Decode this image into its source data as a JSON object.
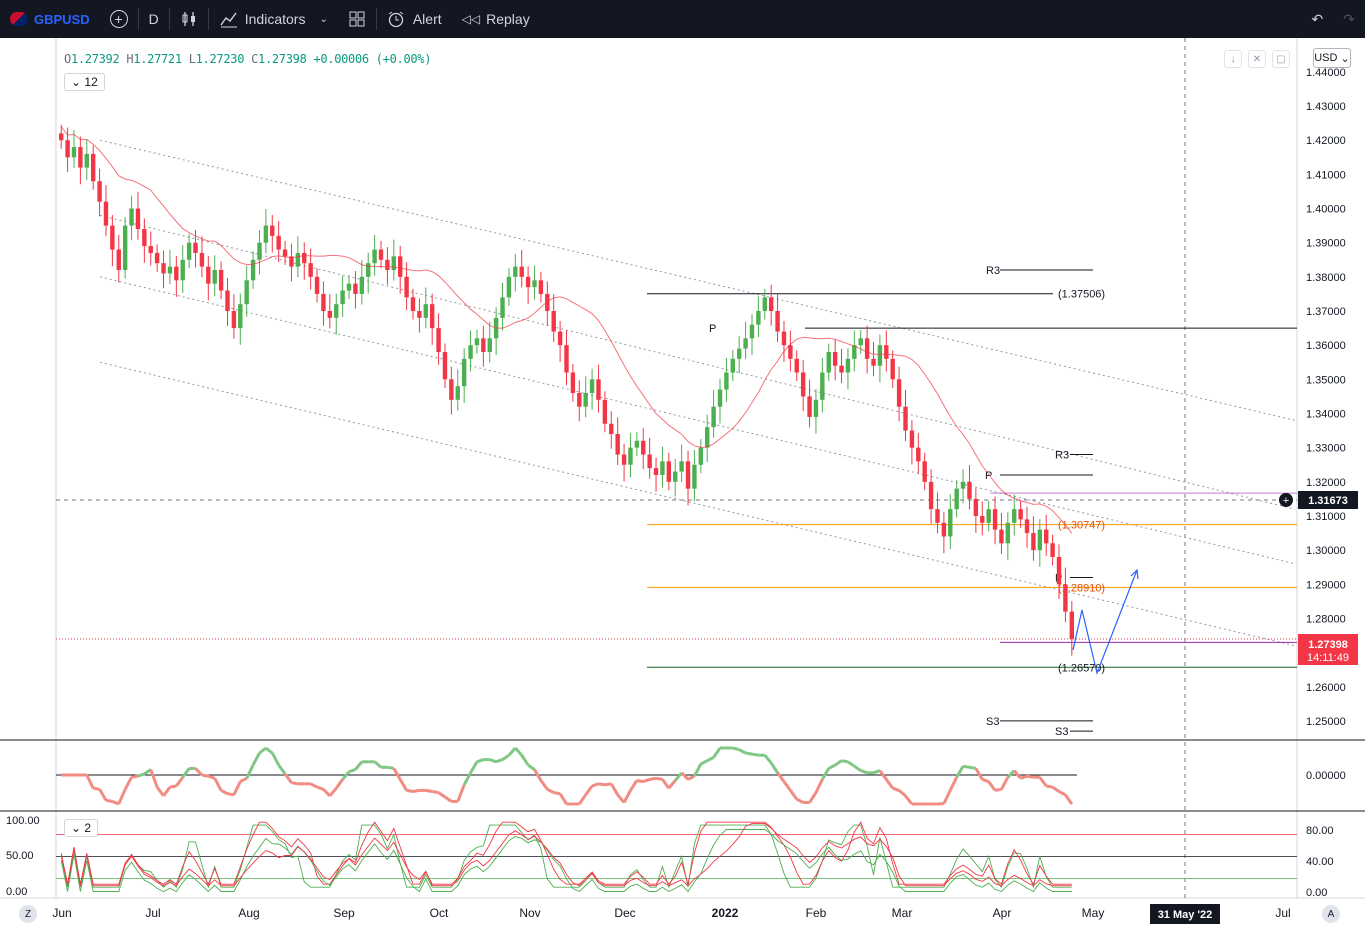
{
  "toolbar": {
    "symbol": "GBPUSD",
    "interval": "D",
    "indicators_label": "Indicators",
    "alert_label": "Alert",
    "replay_label": "Replay"
  },
  "legend": {
    "open_k": "O",
    "open": "1.27392",
    "high_k": "H",
    "high": "1.27721",
    "low_k": "L",
    "low": "1.27230",
    "close_k": "C",
    "close": "1.27398",
    "change": "+0.00006 (+0.00%)",
    "collapse_count": "12",
    "osc_count": "2"
  },
  "price_scale": {
    "currency": "USD"
  },
  "colors": {
    "up": "#4caf50",
    "down": "#f23645",
    "pivot_orange": "#ff9800",
    "purple": "#9c27b0"
  },
  "chart_data": {
    "type": "candlestick",
    "symbol": "GBPUSD",
    "interval": "D",
    "y_ticks": [
      "1.44000",
      "1.43000",
      "1.42000",
      "1.41000",
      "1.40000",
      "1.39000",
      "1.38000",
      "1.37000",
      "1.36000",
      "1.35000",
      "1.34000",
      "1.33000",
      "1.32000",
      "1.31000",
      "1.30000",
      "1.29000",
      "1.28000",
      "1.27000",
      "1.26000",
      "1.25000"
    ],
    "ylim": [
      1.245,
      1.447
    ],
    "x_ticks": [
      "Jun",
      "Jul",
      "Aug",
      "Sep",
      "Oct",
      "Nov",
      "Dec",
      "2022",
      "Feb",
      "Mar",
      "Apr",
      "May",
      "Jul"
    ],
    "crosshair_x_label": "31 May '22",
    "crosshair_price": "1.31673",
    "last_price": "1.27398",
    "countdown": "14:11:49",
    "closes": [
      1.42,
      1.415,
      1.418,
      1.412,
      1.416,
      1.408,
      1.402,
      1.395,
      1.388,
      1.382,
      1.395,
      1.4,
      1.394,
      1.389,
      1.387,
      1.384,
      1.381,
      1.383,
      1.379,
      1.385,
      1.39,
      1.387,
      1.383,
      1.378,
      1.382,
      1.376,
      1.37,
      1.365,
      1.372,
      1.379,
      1.385,
      1.39,
      1.395,
      1.392,
      1.388,
      1.386,
      1.383,
      1.387,
      1.384,
      1.38,
      1.375,
      1.37,
      1.368,
      1.372,
      1.376,
      1.378,
      1.375,
      1.38,
      1.384,
      1.388,
      1.385,
      1.382,
      1.386,
      1.38,
      1.374,
      1.37,
      1.368,
      1.372,
      1.365,
      1.358,
      1.35,
      1.344,
      1.348,
      1.356,
      1.36,
      1.362,
      1.358,
      1.362,
      1.368,
      1.374,
      1.38,
      1.383,
      1.38,
      1.377,
      1.379,
      1.375,
      1.37,
      1.364,
      1.36,
      1.352,
      1.346,
      1.342,
      1.346,
      1.35,
      1.344,
      1.337,
      1.334,
      1.328,
      1.325,
      1.33,
      1.332,
      1.328,
      1.324,
      1.322,
      1.326,
      1.32,
      1.323,
      1.326,
      1.318,
      1.325,
      1.33,
      1.336,
      1.342,
      1.347,
      1.352,
      1.356,
      1.359,
      1.362,
      1.366,
      1.37,
      1.374,
      1.37,
      1.364,
      1.36,
      1.356,
      1.352,
      1.345,
      1.339,
      1.344,
      1.352,
      1.358,
      1.354,
      1.352,
      1.356,
      1.36,
      1.362,
      1.356,
      1.354,
      1.36,
      1.356,
      1.35,
      1.342,
      1.335,
      1.33,
      1.326,
      1.32,
      1.312,
      1.308,
      1.304,
      1.312,
      1.318,
      1.32,
      1.315,
      1.31,
      1.308,
      1.312,
      1.306,
      1.302,
      1.308,
      1.312,
      1.309,
      1.305,
      1.3,
      1.306,
      1.302,
      1.298,
      1.29,
      1.282,
      1.274
    ],
    "pivot_levels": [
      {
        "label": "R3",
        "value": 1.382
      },
      {
        "label": "(1.37506)",
        "value": 1.37506
      },
      {
        "label": "P",
        "value": 1.365
      },
      {
        "label": "R3",
        "value": 1.328
      },
      {
        "label": "P",
        "value": 1.322
      },
      {
        "label": "(1.30747)",
        "value": 1.30747
      },
      {
        "label": "P",
        "value": 1.292
      },
      {
        "label": "(1.28910)",
        "value": 1.2891
      },
      {
        "label": "(1.26570)",
        "value": 1.2657
      },
      {
        "label": "S3",
        "value": 1.25
      },
      {
        "label": "S3",
        "value": 1.247
      }
    ],
    "oscillator1": {
      "zero_label": "0.00000"
    },
    "oscillator2": {
      "ticks_left": [
        "100.00",
        "50.00",
        "0.00"
      ],
      "ticks_right": [
        "80.00",
        "40.00",
        "0.00"
      ]
    }
  }
}
